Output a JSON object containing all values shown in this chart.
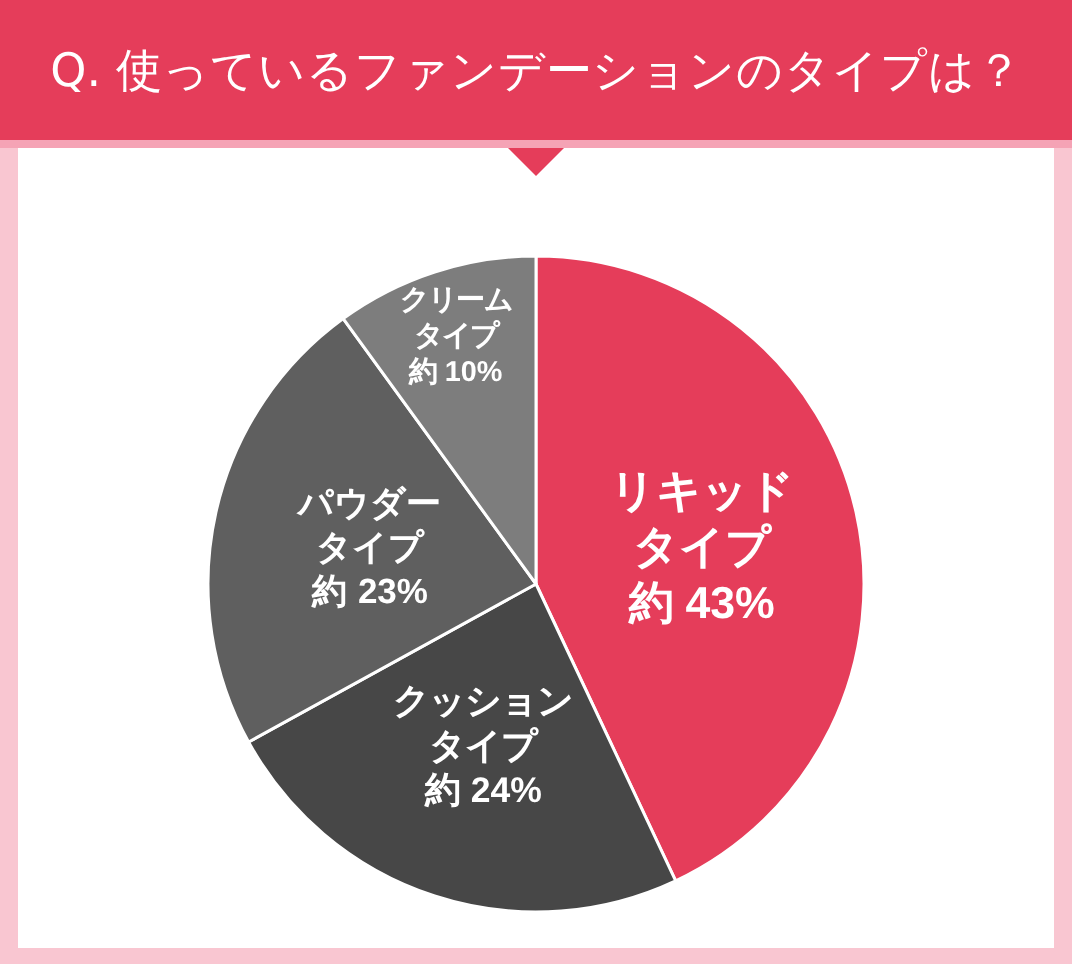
{
  "chart_data": {
    "type": "pie",
    "title": "Q. 使っているファンデーションのタイプは？",
    "categories": [
      "リキッドタイプ",
      "クッションタイプ",
      "パウダータイプ",
      "クリームタイプ"
    ],
    "values": [
      43,
      24,
      23,
      10
    ],
    "value_labels": [
      "約 43%",
      "約 24%",
      "約 23%",
      "約 10%"
    ],
    "colors": [
      "#e53d5a",
      "#474747",
      "#5f5f5f",
      "#7d7d7d"
    ],
    "legend": false
  }
}
